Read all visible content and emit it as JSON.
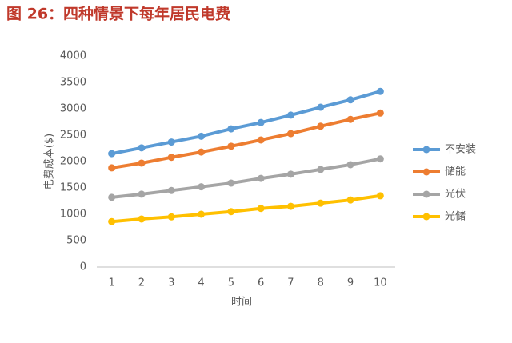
{
  "chart_data": {
    "type": "line",
    "title": "图 26：四种情景下每年居民电费",
    "x_label": "时间",
    "y_label": "电费成本($)",
    "categories": [
      "1",
      "2",
      "3",
      "4",
      "5",
      "6",
      "7",
      "8",
      "9",
      "10"
    ],
    "series": [
      {
        "name": "不安装",
        "color": "#5b9bd5",
        "values": [
          2150,
          2260,
          2370,
          2480,
          2620,
          2740,
          2880,
          3030,
          3170,
          3330
        ]
      },
      {
        "name": "储能",
        "color": "#ed7d31",
        "values": [
          1880,
          1970,
          2080,
          2180,
          2290,
          2410,
          2530,
          2670,
          2800,
          2920
        ]
      },
      {
        "name": "光伏",
        "color": "#a5a5a5",
        "values": [
          1320,
          1380,
          1450,
          1520,
          1590,
          1680,
          1760,
          1850,
          1940,
          2050
        ]
      },
      {
        "name": "光储",
        "color": "#ffc000",
        "values": [
          860,
          910,
          950,
          1000,
          1050,
          1110,
          1150,
          1210,
          1270,
          1350
        ]
      }
    ],
    "ylim": [
      0,
      4000
    ],
    "yticks": [
      0,
      500,
      1000,
      1500,
      2000,
      2500,
      3000,
      3500,
      4000
    ],
    "grid": false,
    "legend": "right"
  }
}
